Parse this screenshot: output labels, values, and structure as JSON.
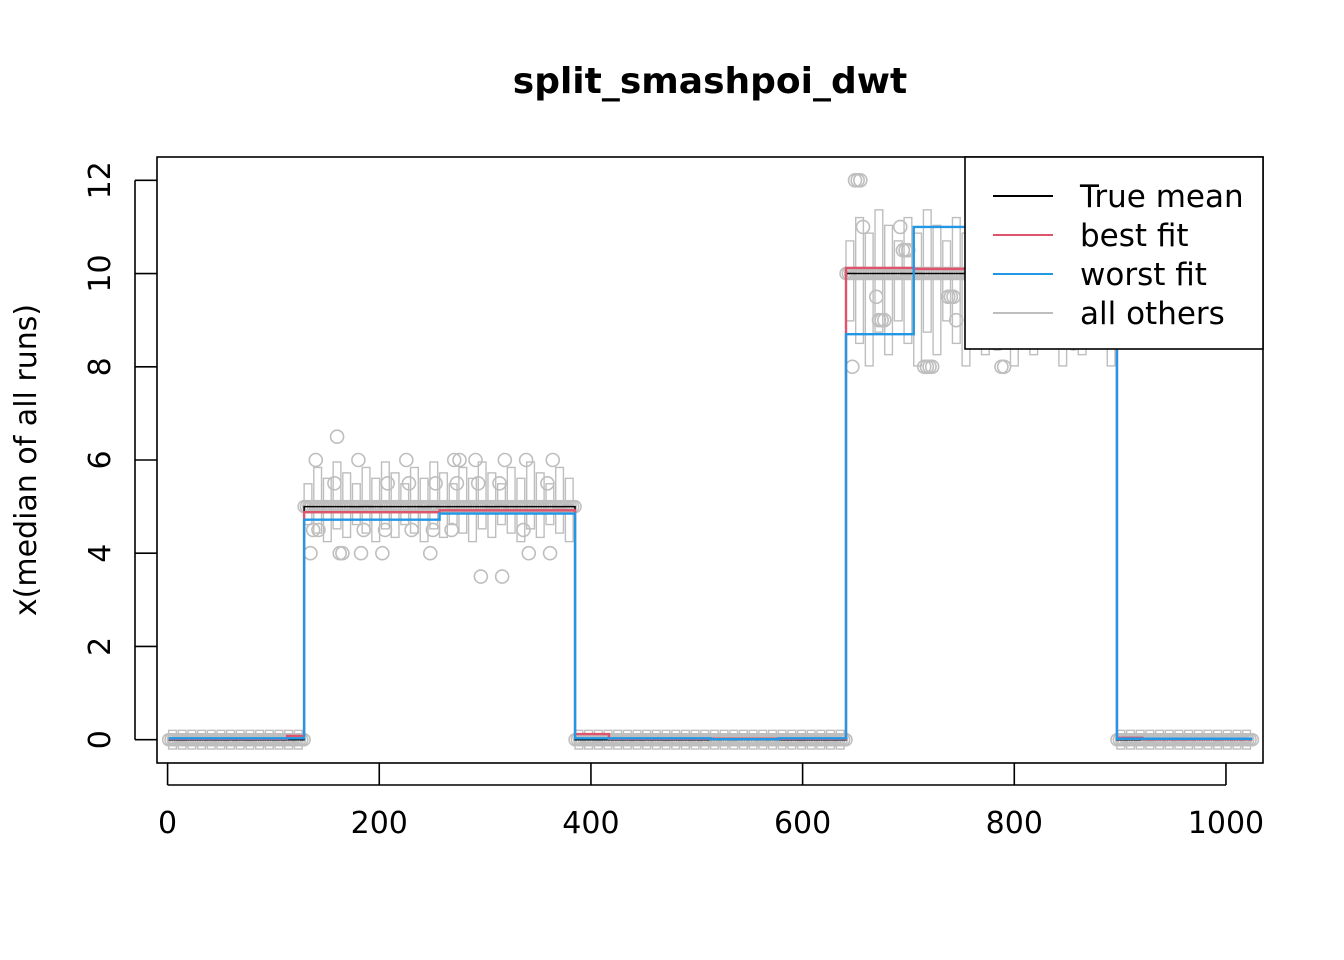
{
  "chart_data": {
    "type": "line",
    "title": "split_smashpoi_dwt",
    "xlabel": "",
    "ylabel": "x(median of all runs)",
    "xlim": [
      -10,
      1035
    ],
    "ylim": [
      -0.5,
      12.5
    ],
    "x_ticks": [
      "0",
      "200",
      "400",
      "600",
      "800",
      "1000"
    ],
    "y_ticks": [
      "0",
      "2",
      "4",
      "6",
      "8",
      "10",
      "12"
    ],
    "grid": false,
    "legend_position": "top-right",
    "legend": [
      {
        "label": "True mean",
        "color": "#000000"
      },
      {
        "label": "best fit",
        "color": "#DF536B"
      },
      {
        "label": "worst fit",
        "color": "#2297E6"
      },
      {
        "label": "all others",
        "color": "#BEBEBE"
      }
    ],
    "series": [
      {
        "name": "True mean",
        "color": "#000000",
        "step_x": [
          1,
          129,
          385,
          641,
          897,
          1025
        ],
        "step_y": [
          0,
          5,
          0,
          10,
          0
        ]
      },
      {
        "name": "best fit",
        "color": "#DF536B",
        "step_x": [
          1,
          113,
          129,
          257,
          385,
          417,
          641,
          705,
          897,
          921,
          1025
        ],
        "step_y": [
          0.02,
          0.08,
          4.88,
          4.92,
          0.12,
          0.02,
          10.12,
          10.1,
          0.04,
          0.01
        ]
      },
      {
        "name": "worst fit",
        "color": "#2297E6",
        "step_x": [
          1,
          129,
          257,
          385,
          513,
          577,
          641,
          705,
          897,
          1025
        ],
        "step_y": [
          0.03,
          4.72,
          4.85,
          0.03,
          0.01,
          0.03,
          8.7,
          11.0,
          0.02
        ]
      }
    ],
    "others": {
      "name": "all others",
      "color": "#BEBEBE",
      "segments": [
        {
          "x0": 1,
          "x1": 129,
          "median": 0,
          "lo": 0,
          "hi": 0.05,
          "outliers": []
        },
        {
          "x0": 129,
          "x1": 385,
          "median": 5,
          "lo": 3.9,
          "hi": 6.4,
          "outliers": [
            4,
            4.5,
            5.5,
            6,
            6,
            5.5,
            4,
            4.5,
            6,
            5.5,
            4,
            4.5,
            6,
            6.5,
            5.5,
            4,
            3.5,
            4.5,
            6,
            5.5,
            4,
            4.5,
            6,
            5.5,
            4,
            3.5,
            4.5,
            6,
            5.5,
            4,
            4.5,
            6,
            5.5,
            4.5,
            6,
            4
          ]
        },
        {
          "x0": 385,
          "x1": 641,
          "median": 0,
          "lo": 0,
          "hi": 0.06,
          "outliers": []
        },
        {
          "x0": 641,
          "x1": 897,
          "median": 10,
          "lo": 7.1,
          "hi": 12,
          "outliers": [
            8,
            9,
            9.5,
            10.5,
            11,
            12,
            8,
            9,
            9.5,
            10.5,
            11,
            12,
            8.5,
            9,
            9.5,
            10.5,
            11,
            8,
            9,
            9.5,
            10.5,
            11,
            12,
            8.5,
            9,
            9.5,
            10.5,
            11,
            8,
            9,
            9.5,
            10.5,
            11,
            12,
            8,
            9,
            9.5,
            10.5,
            11,
            8,
            8.5,
            9,
            9.5,
            10.5,
            11,
            8
          ]
        },
        {
          "x0": 897,
          "x1": 1025,
          "median": 0,
          "lo": 0,
          "hi": 0.05,
          "outliers": []
        }
      ]
    }
  }
}
